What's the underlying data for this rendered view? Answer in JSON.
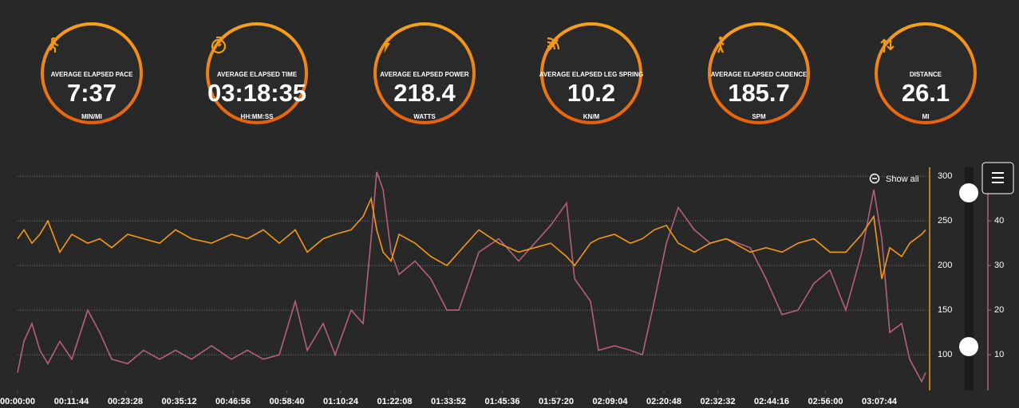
{
  "stats": [
    {
      "label": "AVERAGE ELAPSED PACE",
      "value": "7:37",
      "unit": "MIN/MI"
    },
    {
      "label": "AVERAGE ELAPSED TIME",
      "value": "03:18:35",
      "unit": "HH:MM:SS"
    },
    {
      "label": "AVERAGE ELAPSED POWER",
      "value": "218.4",
      "unit": "WATTS"
    },
    {
      "label": "AVERAGE ELAPSED LEG SPRING",
      "value": "10.2",
      "unit": "KN/M"
    },
    {
      "label": "AVERAGE ELAPSED CADENCE",
      "value": "185.7",
      "unit": "SPM"
    },
    {
      "label": "DISTANCE",
      "value": "26.1",
      "unit": "MI"
    }
  ],
  "zoom_button": "Show all",
  "chart_data": {
    "type": "line",
    "x": [
      0,
      83,
      188,
      292,
      396,
      553,
      709,
      918,
      1074,
      1231,
      1439,
      1648,
      1856,
      2065,
      2274,
      2534,
      2795,
      3004,
      3212,
      3421,
      3630,
      3786,
      3995,
      4151,
      4360,
      4517,
      4621,
      4694,
      4778,
      4882,
      4986,
      5195,
      5403,
      5612,
      5768,
      6029,
      6290,
      6550,
      6759,
      6968,
      7176,
      7281,
      7489,
      7593,
      7802,
      8010,
      8167,
      8323,
      8480,
      8636,
      8845,
      9053,
      9262,
      9575,
      9783,
      9992,
      10200,
      10409,
      10618,
      10826,
      11035,
      11191,
      11296,
      11400,
      11556,
      11660,
      11817,
      11869
    ],
    "series": [
      {
        "color": "#f39a12",
        "values": [
          230,
          240,
          225,
          235,
          250,
          215,
          235,
          225,
          230,
          220,
          235,
          230,
          225,
          240,
          230,
          225,
          235,
          230,
          240,
          225,
          240,
          215,
          230,
          235,
          240,
          255,
          275,
          240,
          215,
          205,
          235,
          225,
          210,
          200,
          215,
          240,
          225,
          215,
          220,
          225,
          210,
          200,
          225,
          230,
          235,
          225,
          230,
          240,
          245,
          225,
          215,
          225,
          230,
          215,
          220,
          215,
          225,
          230,
          215,
          215,
          235,
          255,
          185,
          220,
          210,
          225,
          235,
          240
        ]
      },
      {
        "color": "#b5607a",
        "axis": "y2",
        "values": [
          6,
          13,
          17,
          11,
          8,
          13,
          9,
          20,
          15,
          9,
          8,
          11,
          9,
          11,
          9,
          12,
          9,
          11,
          9,
          10,
          22,
          11,
          17,
          10,
          20,
          17,
          36,
          51,
          47,
          33,
          28,
          31,
          27,
          20,
          20,
          33,
          36,
          31,
          35,
          39,
          44,
          27,
          22,
          11,
          12,
          11,
          10,
          22,
          35,
          43,
          38,
          35,
          36,
          34,
          27,
          19,
          20,
          26,
          29,
          20,
          33,
          47,
          36,
          15,
          17,
          9,
          4,
          6
        ]
      }
    ],
    "xlim": [
      0,
      11869
    ],
    "xticks": [
      {
        "value": 0,
        "label": "00:00:00"
      },
      {
        "value": 704,
        "label": "00:11:44"
      },
      {
        "value": 1408,
        "label": "00:23:28"
      },
      {
        "value": 2112,
        "label": "00:35:12"
      },
      {
        "value": 2816,
        "label": "00:46:56"
      },
      {
        "value": 3520,
        "label": "00:58:40"
      },
      {
        "value": 4224,
        "label": "01:10:24"
      },
      {
        "value": 4928,
        "label": "01:22:08"
      },
      {
        "value": 5632,
        "label": "01:33:52"
      },
      {
        "value": 6336,
        "label": "01:45:36"
      },
      {
        "value": 7040,
        "label": "01:57:20"
      },
      {
        "value": 7744,
        "label": "02:09:04"
      },
      {
        "value": 8448,
        "label": "02:20:48"
      },
      {
        "value": 9152,
        "label": "02:32:32"
      },
      {
        "value": 9856,
        "label": "02:44:16"
      },
      {
        "value": 10560,
        "label": "02:56:00"
      },
      {
        "value": 11264,
        "label": "03:07:44"
      }
    ],
    "ylim": [
      60,
      310
    ],
    "yticks": [
      100,
      150,
      200,
      250,
      300
    ],
    "y2lim": [
      2,
      52
    ],
    "y2ticks": [
      10,
      20,
      30,
      40
    ],
    "grid": true
  }
}
